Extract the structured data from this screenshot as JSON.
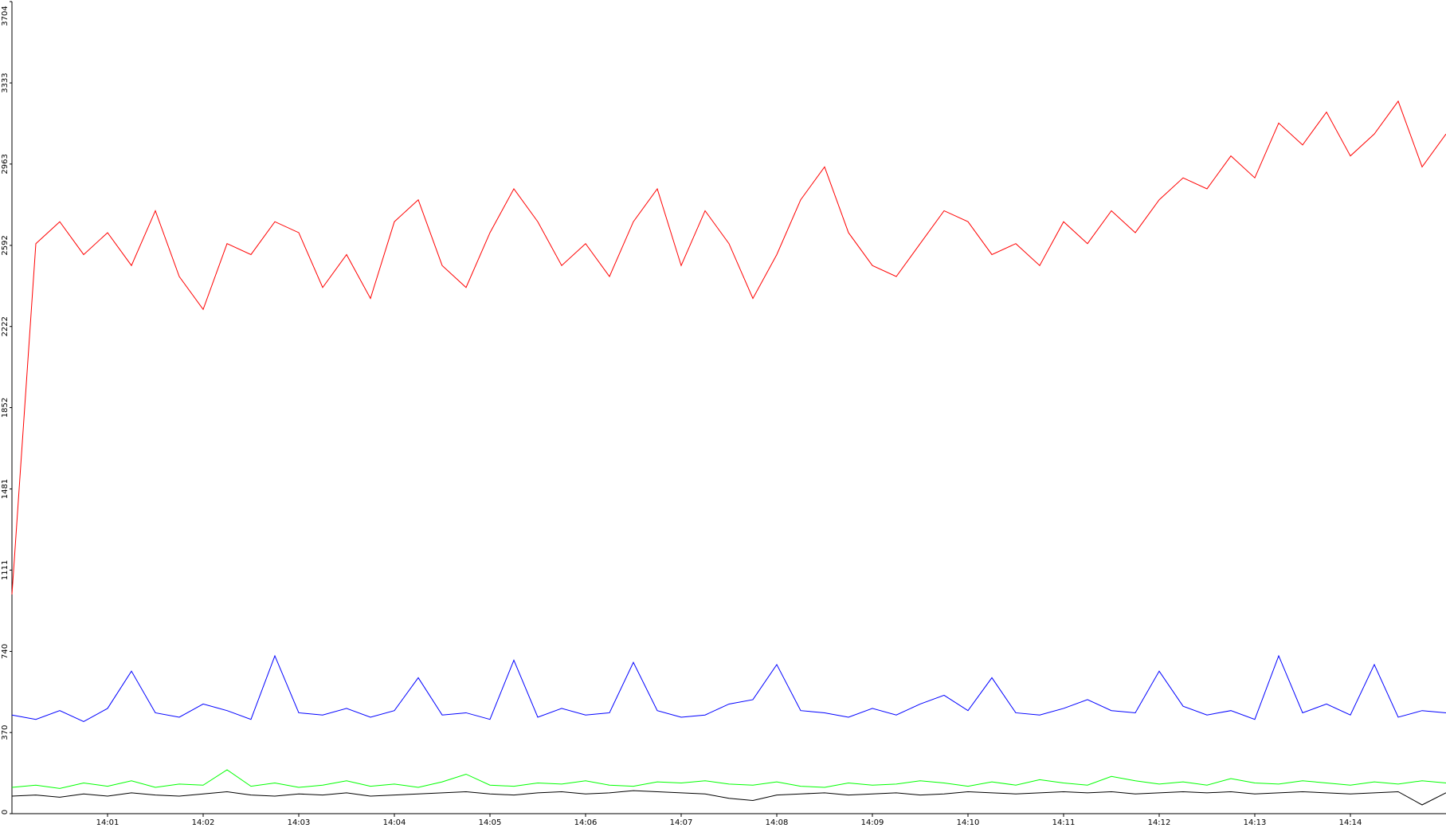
{
  "chart_data": {
    "type": "line",
    "x": [
      840,
      840.25,
      840.5,
      840.75,
      841,
      841.25,
      841.5,
      841.75,
      842,
      842.25,
      842.5,
      842.75,
      843,
      843.25,
      843.5,
      843.75,
      844,
      844.25,
      844.5,
      844.75,
      845,
      845.25,
      845.5,
      845.75,
      846,
      846.25,
      846.5,
      846.75,
      847,
      847.25,
      847.5,
      847.75,
      848,
      848.25,
      848.5,
      848.75,
      849,
      849.25,
      849.5,
      849.75,
      850,
      850.25,
      850.5,
      850.75,
      851,
      851.25,
      851.5,
      851.75,
      852,
      852.25,
      852.5,
      852.75,
      853,
      853.25,
      853.5,
      853.75,
      854,
      854.25,
      854.5,
      854.75,
      855
    ],
    "series": [
      {
        "color": "#ff0000",
        "values": [
          1000,
          2600,
          2700,
          2550,
          2650,
          2500,
          2750,
          2450,
          2300,
          2600,
          2550,
          2700,
          2650,
          2400,
          2550,
          2350,
          2700,
          2800,
          2500,
          2400,
          2650,
          2850,
          2700,
          2500,
          2600,
          2450,
          2700,
          2850,
          2500,
          2750,
          2600,
          2350,
          2550,
          2800,
          2950,
          2650,
          2500,
          2450,
          2600,
          2750,
          2700,
          2550,
          2600,
          2500,
          2700,
          2600,
          2750,
          2650,
          2800,
          2900,
          2850,
          3000,
          2900,
          3150,
          3050,
          3200,
          3000,
          3100,
          3250,
          2950,
          3100
        ]
      },
      {
        "color": "#0000ff",
        "values": [
          450,
          430,
          470,
          420,
          480,
          650,
          460,
          440,
          500,
          470,
          430,
          720,
          460,
          450,
          480,
          440,
          470,
          620,
          450,
          460,
          430,
          700,
          440,
          480,
          450,
          460,
          690,
          470,
          440,
          450,
          500,
          520,
          680,
          470,
          460,
          440,
          480,
          450,
          500,
          540,
          470,
          620,
          460,
          450,
          480,
          520,
          470,
          460,
          650,
          490,
          450,
          470,
          430,
          720,
          460,
          500,
          450,
          680,
          440,
          470,
          460
        ]
      },
      {
        "color": "#00ff00",
        "values": [
          120,
          130,
          115,
          140,
          125,
          150,
          120,
          135,
          130,
          200,
          125,
          140,
          120,
          130,
          150,
          125,
          135,
          120,
          145,
          180,
          130,
          125,
          140,
          135,
          150,
          130,
          125,
          145,
          140,
          150,
          135,
          130,
          145,
          125,
          120,
          140,
          130,
          135,
          150,
          140,
          125,
          145,
          130,
          155,
          140,
          130,
          170,
          150,
          135,
          145,
          130,
          160,
          140,
          135,
          150,
          140,
          130,
          145,
          135,
          150,
          140
        ]
      },
      {
        "color": "#000000",
        "values": [
          80,
          85,
          75,
          90,
          80,
          95,
          85,
          80,
          90,
          100,
          85,
          80,
          90,
          85,
          95,
          80,
          85,
          90,
          95,
          100,
          90,
          85,
          95,
          100,
          90,
          95,
          105,
          100,
          95,
          90,
          70,
          60,
          85,
          90,
          95,
          85,
          90,
          95,
          85,
          90,
          100,
          95,
          90,
          95,
          100,
          95,
          100,
          90,
          95,
          100,
          95,
          100,
          90,
          95,
          100,
          95,
          90,
          95,
          100,
          40,
          95
        ]
      }
    ],
    "xlim": [
      840,
      855
    ],
    "xticks": [
      {
        "value": 841,
        "label": "14:01"
      },
      {
        "value": 842,
        "label": "14:02"
      },
      {
        "value": 843,
        "label": "14:03"
      },
      {
        "value": 844,
        "label": "14:04"
      },
      {
        "value": 845,
        "label": "14:05"
      },
      {
        "value": 846,
        "label": "14:06"
      },
      {
        "value": 847,
        "label": "14:07"
      },
      {
        "value": 848,
        "label": "14:08"
      },
      {
        "value": 849,
        "label": "14:09"
      },
      {
        "value": 850,
        "label": "14:10"
      },
      {
        "value": 851,
        "label": "14:11"
      },
      {
        "value": 852,
        "label": "14:12"
      },
      {
        "value": 853,
        "label": "14:13"
      },
      {
        "value": 854,
        "label": "14:14"
      }
    ],
    "ylim": [
      0,
      3704
    ],
    "yticks": [
      0,
      370,
      740,
      1111,
      1481,
      1852,
      2222,
      2592,
      2963,
      3333,
      3704
    ]
  }
}
